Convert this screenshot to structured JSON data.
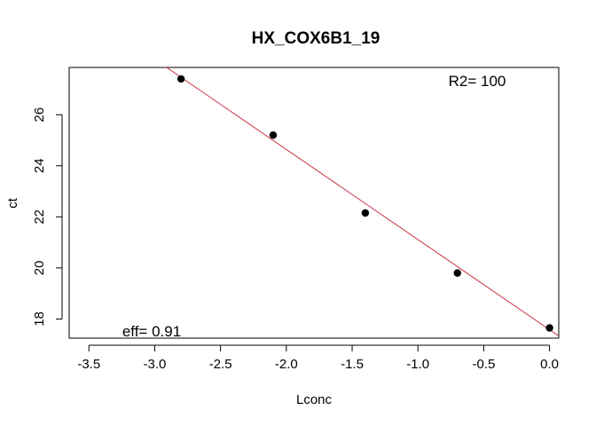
{
  "chart_data": {
    "type": "scatter",
    "title": "HX_COX6B1_19",
    "xlabel": "Lconc",
    "ylabel": "ct",
    "xlim": [
      -3.65,
      0.07
    ],
    "ylim": [
      17.25,
      27.85
    ],
    "xticks": [
      -3.5,
      -3.0,
      -2.5,
      -2.0,
      -1.5,
      -1.0,
      -0.5,
      0.0
    ],
    "xtick_labels": [
      "-3.5",
      "-3.0",
      "-2.5",
      "-2.0",
      "-1.5",
      "-1.0",
      "-0.5",
      "0.0"
    ],
    "yticks": [
      18,
      20,
      22,
      24,
      26
    ],
    "ytick_labels": [
      "18",
      "20",
      "22",
      "24",
      "26"
    ],
    "grid": false,
    "points": [
      {
        "x": -2.8,
        "y": 27.4
      },
      {
        "x": -2.1,
        "y": 25.2
      },
      {
        "x": -1.4,
        "y": 22.15
      },
      {
        "x": -0.7,
        "y": 19.8
      },
      {
        "x": 0.0,
        "y": 17.65
      }
    ],
    "fit_line": {
      "slope": -3.53,
      "intercept": 17.58
    },
    "fit_color": "#cc3344",
    "point_color": "#000000",
    "annotations": {
      "r2": "R2= 100",
      "eff": "eff= 0.91"
    }
  }
}
